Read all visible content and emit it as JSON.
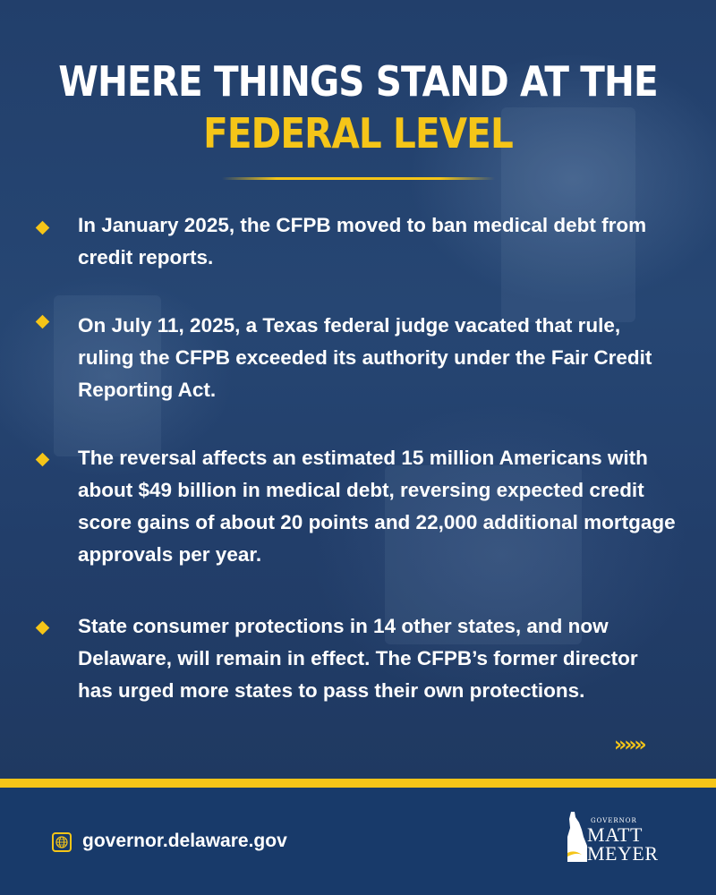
{
  "title": {
    "line1": "WHERE THINGS STAND AT THE",
    "line2": "FEDERAL LEVEL"
  },
  "bullets": [
    {
      "text": "In January 2025, the CFPB moved to ban medical debt from credit reports."
    },
    {
      "text": "On July 11, 2025, a Texas federal judge vacated that rule, ruling the CFPB exceeded its authority under the Fair Credit Reporting Act."
    },
    {
      "text": "The reversal affects an estimated 15 million Americans with about $49 billion in medical debt, reversing expected credit score gains of about 20 points and 22,000 additional mortgage approvals per year."
    },
    {
      "text": "State consumer protections in 14 other states, and now Delaware, will remain in effect. The CFPB’s former director has urged more states to pass their own protections."
    }
  ],
  "next_indicator": "»»»",
  "footer": {
    "website": "governor.delaware.gov",
    "logo": {
      "title": "GOVERNOR",
      "first_name": "MATT",
      "last_name": "MEYER"
    }
  },
  "colors": {
    "background": "#203c66",
    "accent": "#f5c518",
    "footer": "#183a6a",
    "text": "#ffffff"
  },
  "icons": {
    "website": "globe-icon",
    "bullet": "diamond-bullet-icon",
    "state": "delaware-state-icon"
  }
}
